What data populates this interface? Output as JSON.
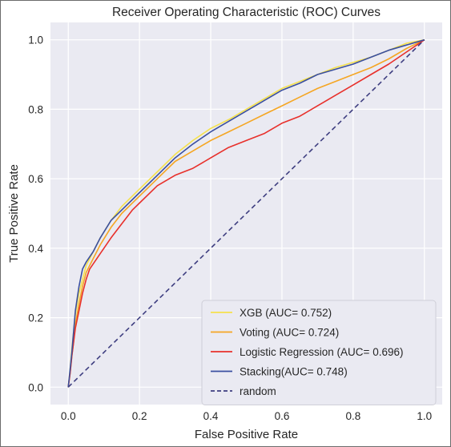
{
  "chart_data": {
    "type": "line",
    "title": "Receiver Operating Characteristic (ROC) Curves",
    "xlabel": "False Positive Rate",
    "ylabel": "True Positive Rate",
    "xlim": [
      -0.05,
      1.05
    ],
    "ylim": [
      -0.05,
      1.05
    ],
    "grid": true,
    "background": "#eaeaf2",
    "legend_position": "lower-right",
    "x_ticks": [
      0.0,
      0.2,
      0.4,
      0.6,
      0.8,
      1.0
    ],
    "y_ticks": [
      0.0,
      0.2,
      0.4,
      0.6,
      0.8,
      1.0
    ],
    "x_tick_labels": [
      "0.0",
      "0.2",
      "0.4",
      "0.6",
      "0.8",
      "1.0"
    ],
    "y_tick_labels": [
      "0.0",
      "0.2",
      "0.4",
      "0.6",
      "0.8",
      "1.0"
    ],
    "series": [
      {
        "name": "XGB (AUC= 0.752)",
        "color": "#f5e14c",
        "dashed": false,
        "points": [
          [
            0,
            0
          ],
          [
            0.005,
            0.05
          ],
          [
            0.01,
            0.11
          ],
          [
            0.015,
            0.16
          ],
          [
            0.02,
            0.21
          ],
          [
            0.03,
            0.27
          ],
          [
            0.04,
            0.31
          ],
          [
            0.05,
            0.35
          ],
          [
            0.07,
            0.39
          ],
          [
            0.09,
            0.43
          ],
          [
            0.12,
            0.48
          ],
          [
            0.15,
            0.52
          ],
          [
            0.2,
            0.57
          ],
          [
            0.25,
            0.62
          ],
          [
            0.3,
            0.67
          ],
          [
            0.35,
            0.71
          ],
          [
            0.4,
            0.745
          ],
          [
            0.45,
            0.77
          ],
          [
            0.5,
            0.8
          ],
          [
            0.55,
            0.83
          ],
          [
            0.6,
            0.86
          ],
          [
            0.65,
            0.88
          ],
          [
            0.7,
            0.9
          ],
          [
            0.75,
            0.92
          ],
          [
            0.8,
            0.935
          ],
          [
            0.85,
            0.95
          ],
          [
            0.9,
            0.97
          ],
          [
            0.95,
            0.99
          ],
          [
            1,
            1
          ]
        ]
      },
      {
        "name": "Voting (AUC= 0.724)",
        "color": "#f5a623",
        "dashed": false,
        "points": [
          [
            0,
            0
          ],
          [
            0.005,
            0.04
          ],
          [
            0.01,
            0.09
          ],
          [
            0.015,
            0.13
          ],
          [
            0.02,
            0.18
          ],
          [
            0.03,
            0.24
          ],
          [
            0.04,
            0.29
          ],
          [
            0.05,
            0.33
          ],
          [
            0.07,
            0.37
          ],
          [
            0.09,
            0.41
          ],
          [
            0.12,
            0.46
          ],
          [
            0.15,
            0.5
          ],
          [
            0.2,
            0.55
          ],
          [
            0.25,
            0.6
          ],
          [
            0.3,
            0.65
          ],
          [
            0.35,
            0.68
          ],
          [
            0.4,
            0.71
          ],
          [
            0.45,
            0.735
          ],
          [
            0.5,
            0.76
          ],
          [
            0.55,
            0.785
          ],
          [
            0.6,
            0.81
          ],
          [
            0.65,
            0.835
          ],
          [
            0.7,
            0.86
          ],
          [
            0.75,
            0.88
          ],
          [
            0.8,
            0.9
          ],
          [
            0.85,
            0.92
          ],
          [
            0.9,
            0.945
          ],
          [
            0.95,
            0.975
          ],
          [
            1,
            1
          ]
        ]
      },
      {
        "name": "Logistic Regression (AUC= 0.696)",
        "color": "#e8302b",
        "dashed": false,
        "points": [
          [
            0,
            0
          ],
          [
            0.005,
            0.04
          ],
          [
            0.01,
            0.09
          ],
          [
            0.015,
            0.13
          ],
          [
            0.02,
            0.17
          ],
          [
            0.03,
            0.22
          ],
          [
            0.04,
            0.27
          ],
          [
            0.05,
            0.31
          ],
          [
            0.06,
            0.34
          ],
          [
            0.08,
            0.37
          ],
          [
            0.1,
            0.4
          ],
          [
            0.12,
            0.43
          ],
          [
            0.15,
            0.47
          ],
          [
            0.18,
            0.51
          ],
          [
            0.2,
            0.53
          ],
          [
            0.25,
            0.58
          ],
          [
            0.3,
            0.61
          ],
          [
            0.35,
            0.63
          ],
          [
            0.4,
            0.66
          ],
          [
            0.45,
            0.69
          ],
          [
            0.5,
            0.71
          ],
          [
            0.55,
            0.73
          ],
          [
            0.6,
            0.76
          ],
          [
            0.65,
            0.78
          ],
          [
            0.7,
            0.81
          ],
          [
            0.75,
            0.84
          ],
          [
            0.8,
            0.87
          ],
          [
            0.85,
            0.9
          ],
          [
            0.9,
            0.93
          ],
          [
            0.95,
            0.965
          ],
          [
            1,
            1
          ]
        ]
      },
      {
        "name": "Stacking(AUC= 0.748)",
        "color": "#3a4fa0",
        "dashed": false,
        "points": [
          [
            0,
            0
          ],
          [
            0.005,
            0.05
          ],
          [
            0.01,
            0.1
          ],
          [
            0.015,
            0.16
          ],
          [
            0.02,
            0.22
          ],
          [
            0.03,
            0.29
          ],
          [
            0.04,
            0.34
          ],
          [
            0.05,
            0.36
          ],
          [
            0.07,
            0.39
          ],
          [
            0.09,
            0.43
          ],
          [
            0.12,
            0.48
          ],
          [
            0.15,
            0.51
          ],
          [
            0.2,
            0.56
          ],
          [
            0.25,
            0.61
          ],
          [
            0.3,
            0.66
          ],
          [
            0.35,
            0.7
          ],
          [
            0.4,
            0.735
          ],
          [
            0.45,
            0.765
          ],
          [
            0.5,
            0.795
          ],
          [
            0.55,
            0.825
          ],
          [
            0.6,
            0.855
          ],
          [
            0.65,
            0.875
          ],
          [
            0.7,
            0.9
          ],
          [
            0.75,
            0.915
          ],
          [
            0.8,
            0.93
          ],
          [
            0.85,
            0.95
          ],
          [
            0.9,
            0.97
          ],
          [
            0.95,
            0.985
          ],
          [
            1,
            1
          ]
        ]
      },
      {
        "name": "random",
        "color": "#3e3e80",
        "dashed": true,
        "points": [
          [
            0,
            0
          ],
          [
            1,
            1
          ]
        ]
      }
    ]
  }
}
